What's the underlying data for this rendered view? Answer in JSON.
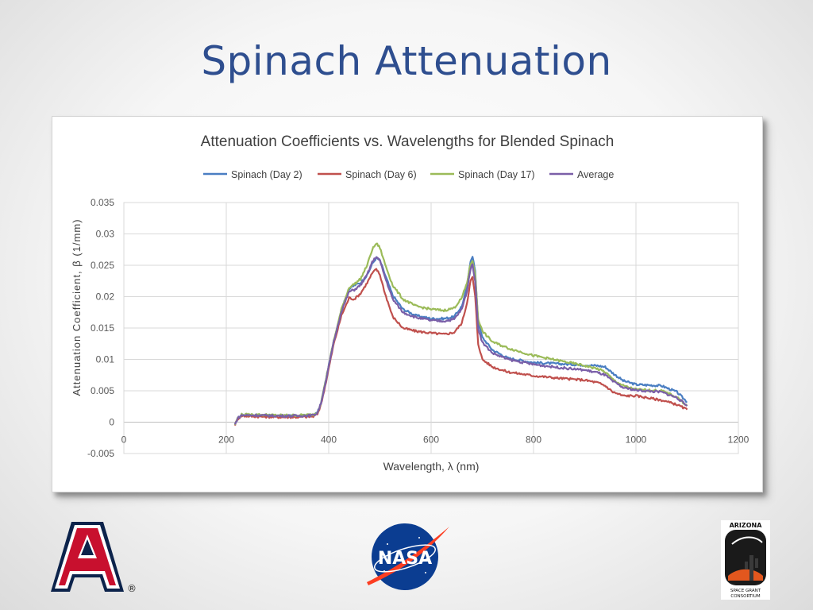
{
  "slide": {
    "title": "Spinach Attenuation"
  },
  "chart_data": {
    "type": "line",
    "title": "Attenuation Coefficients vs. Wavelengths for Blended Spinach",
    "xlabel": "Wavelength, λ (nm)",
    "ylabel": "Attenuation Coefficient, β (1/mm)",
    "xlim": [
      0,
      1200
    ],
    "ylim": [
      -0.005,
      0.035
    ],
    "xticks": [
      0,
      200,
      400,
      600,
      800,
      1000,
      1200
    ],
    "xtick_labels": [
      "0",
      "200",
      "400",
      "600",
      "800",
      "1000",
      "1200"
    ],
    "yticks": [
      -0.005,
      0,
      0.005,
      0.01,
      0.015,
      0.02,
      0.025,
      0.03,
      0.035
    ],
    "ytick_labels": [
      "-0.005",
      "0",
      "0.005",
      "0.01",
      "0.015",
      "0.02",
      "0.025",
      "0.03",
      "0.035"
    ],
    "grid": true,
    "legend_position": "top",
    "series": [
      {
        "name": "Spinach (Day 2)",
        "color": "#4a7ec2",
        "x": [
          217,
          222,
          230,
          260,
          300,
          340,
          370,
          378,
          385,
          395,
          410,
          425,
          440,
          450,
          462,
          475,
          485,
          493,
          500,
          510,
          525,
          545,
          570,
          600,
          625,
          645,
          660,
          670,
          677,
          681,
          686,
          692,
          700,
          720,
          750,
          800,
          850,
          900,
          925,
          940,
          955,
          975,
          1000,
          1050,
          1080,
          1100
        ],
        "values": [
          -0.0005,
          0.0006,
          0.0012,
          0.0011,
          0.001,
          0.001,
          0.0011,
          0.0015,
          0.003,
          0.007,
          0.013,
          0.018,
          0.0212,
          0.0218,
          0.0222,
          0.0234,
          0.0252,
          0.0262,
          0.0258,
          0.0235,
          0.0202,
          0.018,
          0.017,
          0.0165,
          0.0165,
          0.0168,
          0.0185,
          0.0215,
          0.0258,
          0.0265,
          0.024,
          0.016,
          0.0135,
          0.0115,
          0.0102,
          0.0095,
          0.0093,
          0.0091,
          0.009,
          0.0088,
          0.0078,
          0.0066,
          0.006,
          0.0058,
          0.0048,
          0.0032
        ]
      },
      {
        "name": "Spinach (Day 6)",
        "color": "#c0504d",
        "x": [
          217,
          222,
          230,
          260,
          300,
          340,
          370,
          378,
          385,
          395,
          410,
          425,
          440,
          450,
          462,
          475,
          485,
          493,
          500,
          510,
          525,
          545,
          570,
          600,
          625,
          645,
          660,
          670,
          677,
          681,
          686,
          692,
          700,
          720,
          750,
          800,
          850,
          900,
          925,
          940,
          955,
          975,
          1000,
          1050,
          1080,
          1100
        ],
        "values": [
          -0.0004,
          0.0005,
          0.001,
          0.0009,
          0.0008,
          0.0008,
          0.0009,
          0.0013,
          0.0028,
          0.0065,
          0.0125,
          0.017,
          0.0198,
          0.0196,
          0.0205,
          0.0222,
          0.0237,
          0.0244,
          0.0235,
          0.0205,
          0.0168,
          0.015,
          0.0145,
          0.0142,
          0.014,
          0.0143,
          0.0158,
          0.019,
          0.0225,
          0.0231,
          0.02,
          0.0125,
          0.01,
          0.0088,
          0.008,
          0.0074,
          0.007,
          0.0067,
          0.0063,
          0.0058,
          0.0048,
          0.0042,
          0.0042,
          0.0035,
          0.0028,
          0.002
        ]
      },
      {
        "name": "Spinach (Day 17)",
        "color": "#9bbb59",
        "x": [
          217,
          222,
          230,
          260,
          300,
          340,
          370,
          378,
          385,
          395,
          410,
          425,
          440,
          450,
          462,
          475,
          485,
          493,
          500,
          510,
          525,
          545,
          570,
          600,
          625,
          645,
          660,
          670,
          677,
          681,
          686,
          692,
          700,
          720,
          750,
          800,
          850,
          900,
          925,
          940,
          955,
          975,
          1000,
          1050,
          1080,
          1100
        ],
        "values": [
          -0.0004,
          0.0006,
          0.0012,
          0.0012,
          0.0011,
          0.0011,
          0.0012,
          0.0016,
          0.0031,
          0.007,
          0.013,
          0.018,
          0.0215,
          0.022,
          0.0228,
          0.025,
          0.0275,
          0.0285,
          0.0278,
          0.0252,
          0.0218,
          0.0196,
          0.0185,
          0.018,
          0.0178,
          0.0182,
          0.0198,
          0.0222,
          0.0252,
          0.0258,
          0.0235,
          0.0165,
          0.0145,
          0.0128,
          0.0118,
          0.0106,
          0.0098,
          0.009,
          0.0085,
          0.008,
          0.0068,
          0.0058,
          0.0052,
          0.005,
          0.004,
          0.0026
        ]
      },
      {
        "name": "Average",
        "color": "#7a5fa8",
        "x": [
          217,
          222,
          230,
          260,
          300,
          340,
          370,
          378,
          385,
          395,
          410,
          425,
          440,
          450,
          462,
          475,
          485,
          493,
          500,
          510,
          525,
          545,
          570,
          600,
          625,
          645,
          660,
          670,
          677,
          681,
          686,
          692,
          700,
          720,
          750,
          800,
          850,
          900,
          925,
          940,
          955,
          975,
          1000,
          1050,
          1080,
          1100
        ],
        "values": [
          -0.0004,
          0.0006,
          0.0011,
          0.0011,
          0.001,
          0.001,
          0.0011,
          0.0015,
          0.003,
          0.0068,
          0.0128,
          0.0177,
          0.0208,
          0.0211,
          0.0218,
          0.0235,
          0.0255,
          0.0264,
          0.0257,
          0.0231,
          0.0196,
          0.0175,
          0.0167,
          0.0162,
          0.0161,
          0.0164,
          0.018,
          0.0209,
          0.0245,
          0.0251,
          0.0225,
          0.015,
          0.0127,
          0.011,
          0.01,
          0.0092,
          0.0087,
          0.0083,
          0.0079,
          0.0075,
          0.0065,
          0.0055,
          0.0051,
          0.0048,
          0.0039,
          0.0026
        ]
      }
    ]
  },
  "logos": [
    {
      "name": "University of Arizona",
      "text": "A",
      "registered": "®",
      "colors": {
        "red": "#c8102e",
        "blue": "#0c234b"
      }
    },
    {
      "name": "NASA",
      "text": "NASA",
      "colors": {
        "blue": "#0b3d91",
        "red": "#fc3d21"
      }
    },
    {
      "name": "Arizona Space Grant Consortium",
      "text_top": "ARIZONA",
      "text_bottom_1": "SPACE GRANT",
      "text_bottom_2": "CONSORTIUM"
    }
  ]
}
